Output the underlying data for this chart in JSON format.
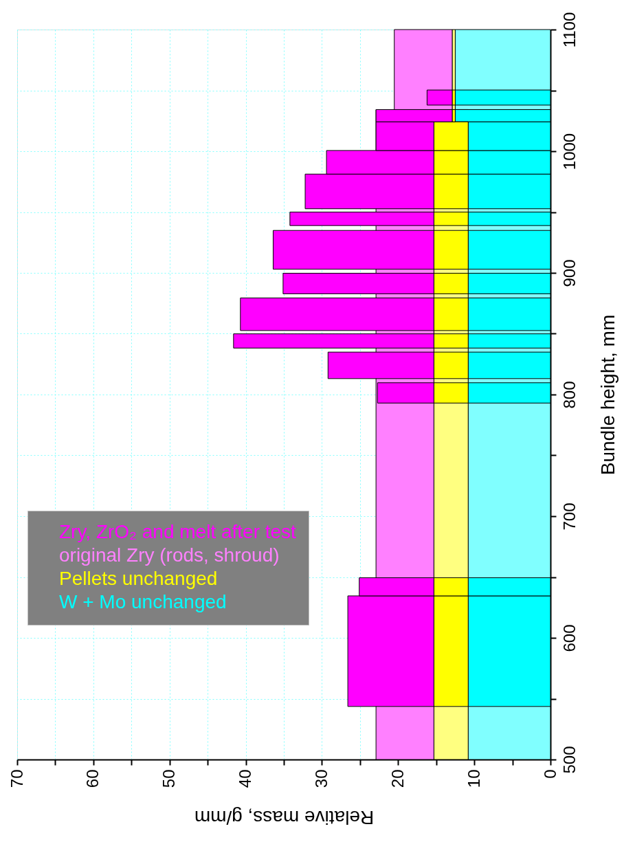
{
  "chart_data": {
    "type": "histogram",
    "orientation": "horizontal",
    "xlabel": "Relative mass, g/mm",
    "ylabel": "Bundle height, mm",
    "xlim": [
      70,
      0
    ],
    "ylim": [
      500,
      1100
    ],
    "xticks": [
      70,
      {
        "value": 65,
        "label": null
      },
      60,
      {
        "value": 55,
        "label": null
      },
      50,
      {
        "value": 45,
        "label": null
      },
      40,
      {
        "value": 35,
        "label": null
      },
      30,
      {
        "value": 25,
        "label": null
      },
      20,
      {
        "value": 15,
        "label": null
      },
      10,
      {
        "value": 5,
        "label": null
      },
      0
    ],
    "yticks": [
      500,
      {
        "value": 550,
        "label": null
      },
      600,
      {
        "value": 650,
        "label": null
      },
      700,
      {
        "value": 750,
        "label": null
      },
      800,
      {
        "value": 850,
        "label": null
      },
      900,
      {
        "value": 950,
        "label": null
      },
      1000,
      {
        "value": 1050,
        "label": null
      },
      1100
    ],
    "grid": true,
    "legend": "left",
    "bins": [
      543.6,
      634.5,
      649.4,
      793,
      809.7,
      813.1,
      834.9,
      838.2,
      849.9,
      852.6,
      879.4,
      882.8,
      899.7,
      903,
      934.9,
      938.9,
      950,
      952.7,
      981.2,
      1000.6,
      1024.2,
      1034.2,
      1037.9,
      1050.3
    ],
    "series": [
      {
        "bins": [
          500,
          1034.2,
          1100
        ],
        "base": [
          0,
          0
        ],
        "color": "#80ffff",
        "values": [
          10.8,
          12.5
        ]
      },
      {
        "bins": [
          500,
          1034.2,
          1100
        ],
        "base": [
          10.8,
          12.5
        ],
        "color": "#ffff80",
        "values": [
          4.5,
          0.4
        ]
      },
      {
        "name": "original Zry (rods, shroud)",
        "bins": [
          500,
          1034.2,
          1100
        ],
        "base": [
          15.3,
          12.9
        ],
        "color": "#ff80ff",
        "values": [
          7.6,
          7.6
        ]
      },
      {
        "name": "W + Mo unchanged",
        "color": "#00ffff",
        "base": [
          0,
          0,
          null,
          0,
          null,
          0,
          null,
          0,
          null,
          0,
          null,
          0,
          null,
          0,
          null,
          0,
          null,
          0,
          0,
          0,
          0,
          null,
          0
        ],
        "values": [
          10.8,
          10.8,
          null,
          10.8,
          null,
          10.8,
          null,
          10.8,
          null,
          10.8,
          null,
          10.8,
          null,
          10.8,
          null,
          10.8,
          null,
          10.8,
          10.8,
          10.8,
          12.5,
          null,
          12.5
        ]
      },
      {
        "name": "Pellets unchanged",
        "color": "#ffff00",
        "base": [
          10.8,
          10.8,
          null,
          10.8,
          null,
          10.8,
          null,
          10.8,
          null,
          10.8,
          null,
          10.8,
          null,
          10.8,
          null,
          10.8,
          null,
          10.8,
          10.8,
          10.8,
          12.5,
          null,
          12.5
        ],
        "values": [
          4.5,
          4.5,
          null,
          4.5,
          null,
          4.5,
          null,
          4.5,
          null,
          4.5,
          null,
          4.5,
          null,
          4.5,
          null,
          4.5,
          null,
          4.5,
          4.5,
          4.5,
          0.4,
          null,
          0.4
        ]
      },
      {
        "name": "Zry, ZrO₂ and melt after test",
        "color": "#ff00ff",
        "base": [
          15.3,
          15.3,
          null,
          15.3,
          null,
          15.3,
          null,
          15.3,
          null,
          15.3,
          null,
          15.3,
          null,
          15.3,
          null,
          15.3,
          null,
          15.3,
          15.3,
          15.3,
          12.9,
          null,
          12.9
        ],
        "values": [
          11.3,
          9.8,
          null,
          7.4,
          null,
          13.9,
          null,
          26.3,
          null,
          25.4,
          null,
          19.8,
          null,
          21.1,
          null,
          18.9,
          null,
          16.9,
          14.1,
          7.6,
          10.0,
          null,
          3.3
        ]
      }
    ]
  }
}
